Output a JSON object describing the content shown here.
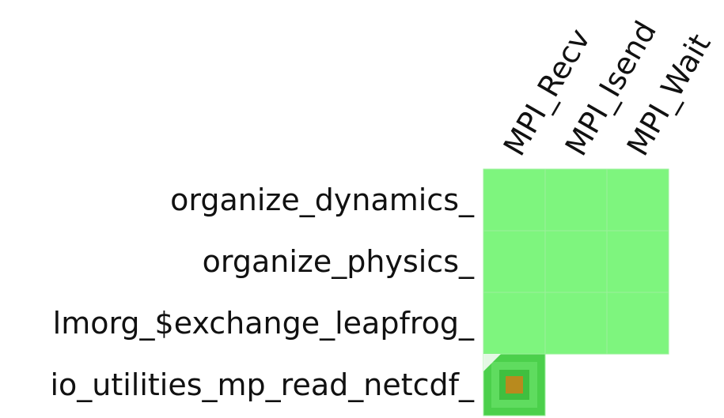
{
  "chart_data": {
    "type": "heatmap",
    "title": "",
    "xlabel": "",
    "ylabel": "",
    "columns": [
      "MPI_Recv",
      "MPI_Isend",
      "MPI_Wait"
    ],
    "rows": [
      "organize_dynamics_",
      "organize_physics_",
      "lmorg_$exchange_leapfrog_",
      "io_utilities_mp_read_netcdf_"
    ],
    "cells": [
      [
        {
          "present": true,
          "color": "#7ef57e"
        },
        {
          "present": true,
          "color": "#7ef57e"
        },
        {
          "present": true,
          "color": "#7ef57e"
        }
      ],
      [
        {
          "present": true,
          "color": "#7ef57e"
        },
        {
          "present": true,
          "color": "#7ef57e"
        },
        {
          "present": true,
          "color": "#7ef57e"
        }
      ],
      [
        {
          "present": true,
          "color": "#7ef57e"
        },
        {
          "present": true,
          "color": "#7ef57e"
        },
        {
          "present": true,
          "color": "#7ef57e"
        }
      ],
      [
        {
          "present": true,
          "color": "#4bd04b",
          "hot": true
        },
        {
          "present": false
        },
        {
          "present": false
        }
      ]
    ],
    "legend": "none",
    "grid": false
  },
  "colors": {
    "cell_fill": "#7ef57e",
    "cell_border": "#9cf09c",
    "hot_cell_fill": "#4bd04b",
    "hot_core": "#b88a1e"
  }
}
